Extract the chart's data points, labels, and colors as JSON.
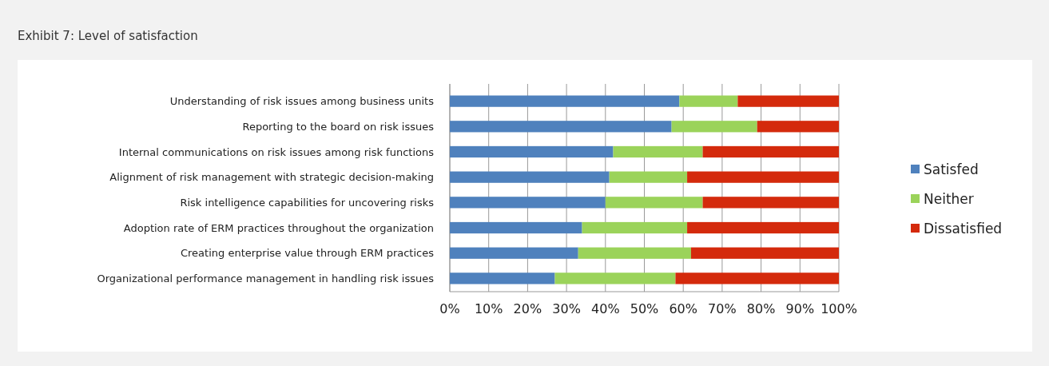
{
  "chart_data": {
    "type": "bar",
    "orientation": "horizontal",
    "stacked": true,
    "title": "Exhibit 7: Level of satisfaction",
    "categories": [
      "Understanding of risk issues among business units",
      "Reporting to the board on risk issues",
      "Internal communications on risk issues among risk functions",
      "Alignment of risk management with strategic decision-making",
      "Risk intelligence capabilities for uncovering risks",
      "Adoption rate of ERM practices throughout the organization",
      "Creating enterprise value through ERM practices",
      "Organizational performance management in handling risk issues"
    ],
    "series": [
      {
        "name": "Satisfed",
        "color": "#4f81bd",
        "values": [
          59,
          57,
          42,
          41,
          40,
          34,
          33,
          27
        ]
      },
      {
        "name": "Neither",
        "color": "#9bd35a",
        "values": [
          15,
          22,
          23,
          20,
          25,
          27,
          29,
          31
        ]
      },
      {
        "name": "Dissatisfied",
        "color": "#d42a0c",
        "values": [
          26,
          21,
          35,
          39,
          35,
          39,
          38,
          42
        ]
      }
    ],
    "xlim": [
      0,
      100
    ],
    "xticks": [
      {
        "value": 0,
        "label": "0%"
      },
      {
        "value": 10,
        "label": "10%"
      },
      {
        "value": 20,
        "label": "20%"
      },
      {
        "value": 30,
        "label": "30%"
      },
      {
        "value": 40,
        "label": "40%"
      },
      {
        "value": 50,
        "label": "50%"
      },
      {
        "value": 60,
        "label": "60%"
      },
      {
        "value": 70,
        "label": "70%"
      },
      {
        "value": 80,
        "label": "80%"
      },
      {
        "value": 90,
        "label": "90%"
      },
      {
        "value": 100,
        "label": "100%"
      }
    ],
    "grid": "x",
    "legend": "right"
  }
}
